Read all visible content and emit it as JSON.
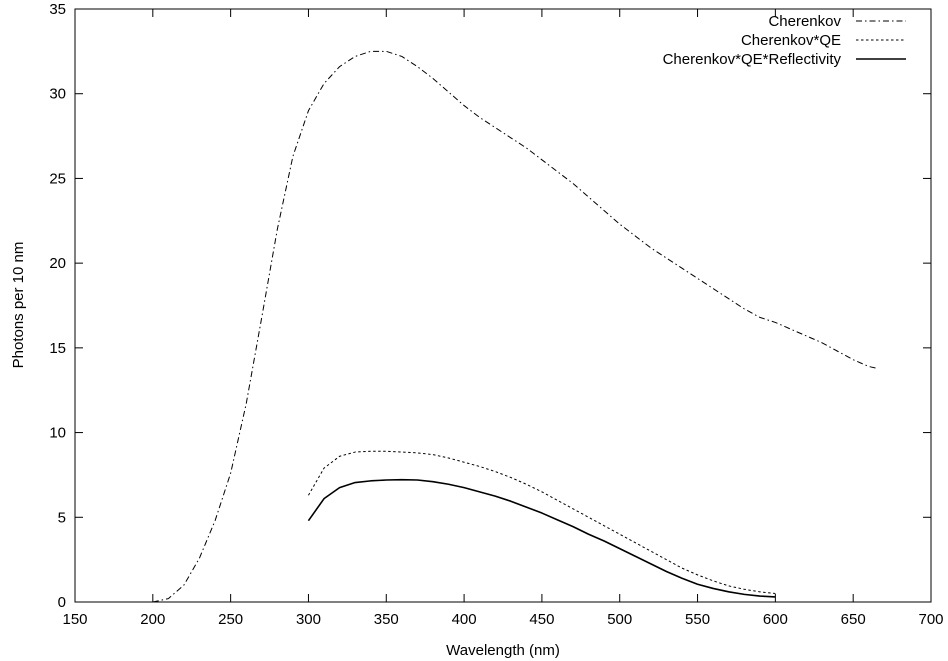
{
  "chart_data": {
    "type": "line",
    "title": "",
    "xlabel": "Wavelength (nm)",
    "ylabel": "Photons per 10 nm",
    "xlim": [
      150,
      700
    ],
    "ylim": [
      0,
      35
    ],
    "xticks": [
      150,
      200,
      250,
      300,
      350,
      400,
      450,
      500,
      550,
      600,
      650,
      700
    ],
    "yticks": [
      0,
      5,
      10,
      15,
      20,
      25,
      30,
      35
    ],
    "grid": false,
    "legend_position": "top-right",
    "series": [
      {
        "name": "Cherenkov",
        "style": "dash-dot",
        "x": [
          200,
          210,
          220,
          230,
          240,
          250,
          260,
          270,
          280,
          290,
          300,
          310,
          320,
          330,
          340,
          350,
          360,
          370,
          380,
          390,
          400,
          410,
          420,
          430,
          440,
          450,
          460,
          470,
          480,
          490,
          500,
          510,
          520,
          530,
          540,
          550,
          560,
          570,
          580,
          590,
          600,
          610,
          620,
          630,
          640,
          650,
          660,
          665
        ],
        "y": [
          0,
          0.2,
          1.0,
          2.6,
          4.8,
          7.6,
          11.7,
          16.8,
          22.0,
          26.3,
          29.0,
          30.6,
          31.6,
          32.2,
          32.5,
          32.5,
          32.2,
          31.6,
          30.9,
          30.1,
          29.3,
          28.6,
          28.0,
          27.4,
          26.8,
          26.1,
          25.4,
          24.7,
          23.9,
          23.1,
          22.3,
          21.6,
          20.9,
          20.3,
          19.7,
          19.1,
          18.5,
          17.9,
          17.3,
          16.8,
          16.5,
          16.1,
          15.7,
          15.3,
          14.8,
          14.3,
          13.9,
          13.8
        ]
      },
      {
        "name": "Cherenkov*QE",
        "style": "dotted",
        "x": [
          300,
          310,
          320,
          330,
          340,
          350,
          360,
          370,
          380,
          390,
          400,
          410,
          420,
          430,
          440,
          450,
          460,
          470,
          480,
          490,
          500,
          510,
          520,
          530,
          540,
          550,
          560,
          570,
          580,
          590,
          600
        ],
        "y": [
          6.3,
          7.9,
          8.6,
          8.85,
          8.9,
          8.9,
          8.85,
          8.8,
          8.7,
          8.5,
          8.25,
          8.0,
          7.7,
          7.35,
          6.95,
          6.5,
          6.0,
          5.5,
          5.0,
          4.5,
          4.0,
          3.5,
          3.0,
          2.5,
          2.0,
          1.6,
          1.25,
          0.95,
          0.75,
          0.6,
          0.5
        ]
      },
      {
        "name": "Cherenkov*QE*Reflectivity",
        "style": "solid",
        "x": [
          300,
          310,
          320,
          330,
          340,
          350,
          360,
          370,
          380,
          390,
          400,
          410,
          420,
          430,
          440,
          450,
          460,
          470,
          480,
          490,
          500,
          510,
          520,
          530,
          540,
          550,
          560,
          570,
          580,
          590,
          600
        ],
        "y": [
          4.8,
          6.1,
          6.75,
          7.05,
          7.15,
          7.2,
          7.22,
          7.2,
          7.1,
          6.95,
          6.75,
          6.5,
          6.25,
          5.95,
          5.6,
          5.25,
          4.85,
          4.45,
          4.0,
          3.6,
          3.15,
          2.7,
          2.25,
          1.8,
          1.4,
          1.05,
          0.8,
          0.6,
          0.45,
          0.35,
          0.3
        ]
      }
    ]
  }
}
